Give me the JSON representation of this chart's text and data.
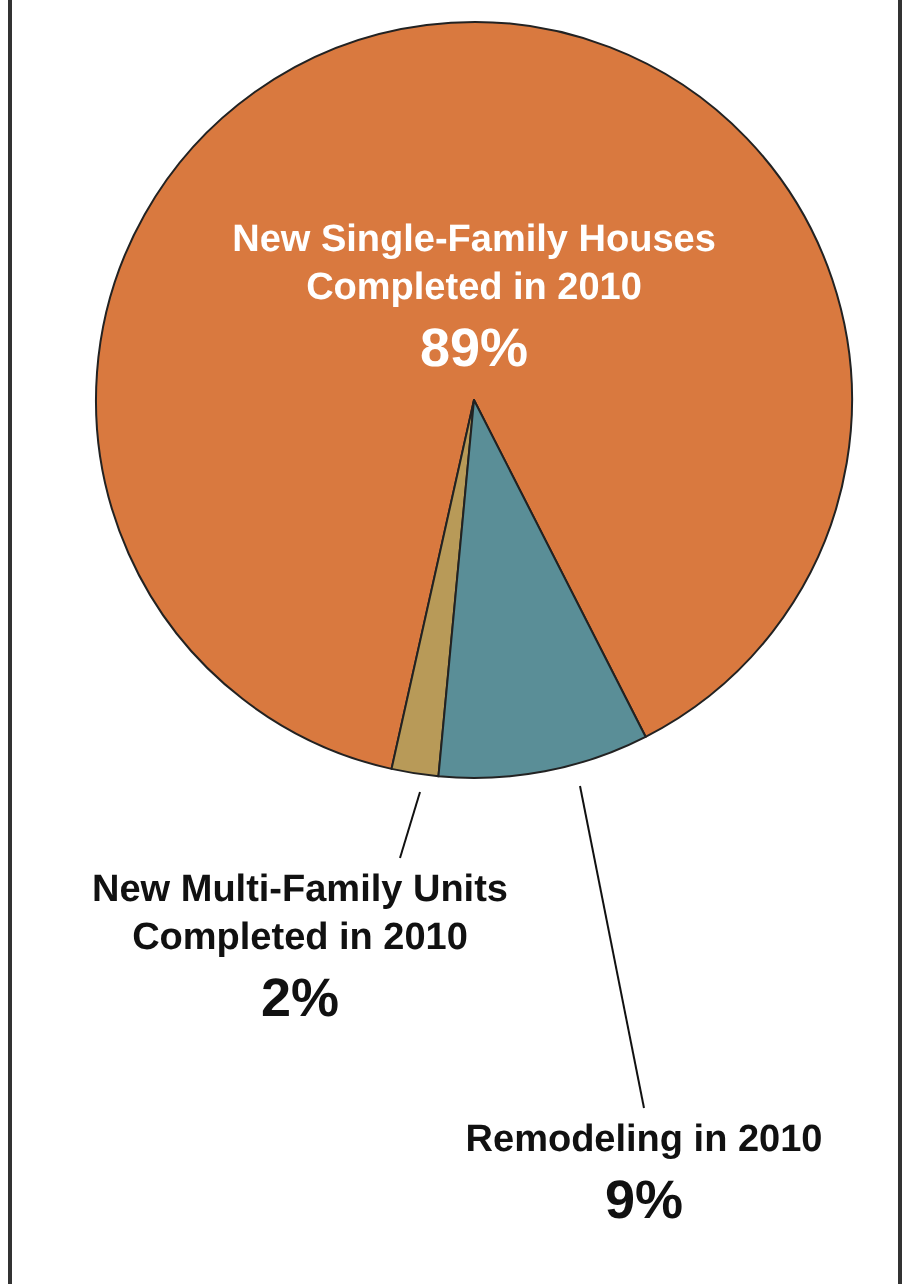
{
  "chart_data": {
    "type": "pie",
    "categories": [
      "New Single-Family Houses Completed in 2010",
      "New Multi-Family Units Completed in 2010",
      "Remodeling in 2010"
    ],
    "values": [
      89,
      2,
      9
    ],
    "value_labels": [
      "89%",
      "2%",
      "9%"
    ],
    "colors": [
      "#d9793f",
      "#b89a58",
      "#5a8e97"
    ]
  }
}
